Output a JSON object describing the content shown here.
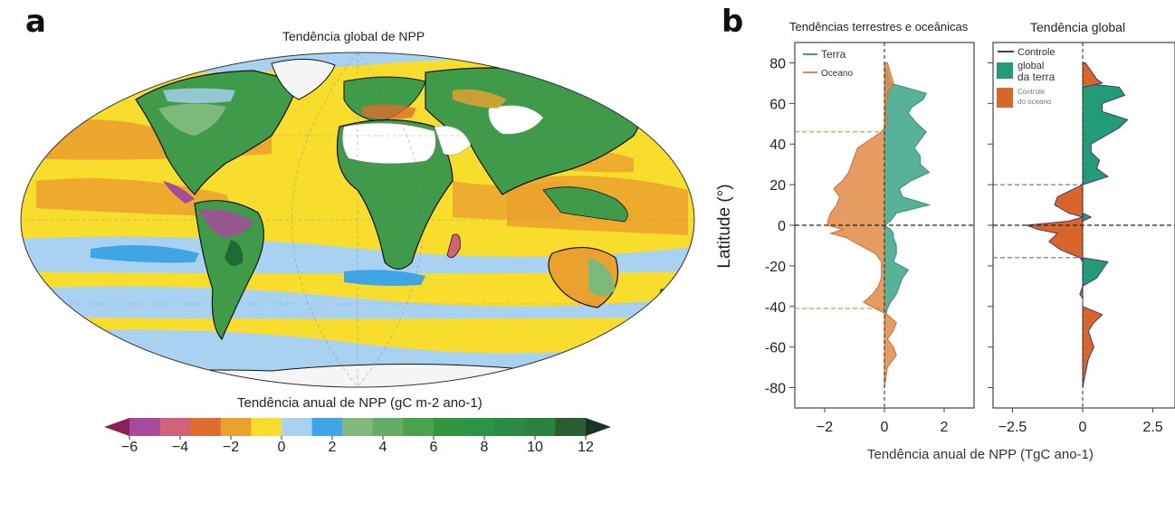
{
  "panel_a": {
    "letter": "a",
    "title": "Tendência global de NPP",
    "colorbar_label": "Tendência anual de NPP (gC m-2 ano-1)",
    "colorbar_ticks": [
      "−6",
      "−4",
      "−2",
      "0",
      "2",
      "4",
      "6",
      "8",
      "10",
      "12"
    ],
    "colorbar_colors": [
      "#8c1f5a",
      "#a64a9a",
      "#d0627a",
      "#de6d2e",
      "#eba12e",
      "#f9dd2d",
      "#a9d2f2",
      "#3ea6e6",
      "#82b97d",
      "#66ab66",
      "#4ba24b",
      "#32963f",
      "#2b9446",
      "#2a8b44",
      "#2c8240",
      "#2b5e33",
      "#1a3327"
    ],
    "colors": {
      "ocean_yellow": "#f9dd2d",
      "ocean_orange": "#eba12e",
      "ocean_light_blue": "#a9d2f2",
      "ocean_blue": "#3ea6e6",
      "land_green": "#3f9a4a",
      "land_light_green": "#7cb97a",
      "desert_white": "#ffffff",
      "ice_white": "#f5f5f5",
      "purple": "#a64a9a"
    }
  },
  "panel_b": {
    "letter": "b",
    "ylabel": "Latitude (°)",
    "xlabel": "Tendência anual de NPP (TgC ano-1)",
    "yticks": [
      "80",
      "60",
      "40",
      "20",
      "0",
      "-20",
      "-40",
      "-60",
      "-80"
    ],
    "left": {
      "title": "Tendências terrestres e oceânicas",
      "xticks": [
        "−2",
        "0",
        "2"
      ],
      "legend": [
        {
          "label": "Terra",
          "color": "#3ba487"
        },
        {
          "label": "Oceano",
          "color": "#e08a45"
        }
      ]
    },
    "right": {
      "title": "Tendência global",
      "xticks": [
        "−2.5",
        "0",
        "2.5"
      ],
      "legend": [
        {
          "label": "Controle",
          "kind": "line",
          "color": "#3c3a78"
        },
        {
          "label": "global",
          "kind": "text"
        },
        {
          "label": "da terra",
          "kind": "patch",
          "color": "#239a78"
        },
        {
          "label": "Controle",
          "kind": "patch",
          "color": "#d9652a"
        },
        {
          "label": "do oceano",
          "kind": "text"
        }
      ]
    }
  },
  "chart_data": [
    {
      "type": "heatmap",
      "title": "Tendência global de NPP",
      "projection": "Mollweide",
      "colorbar": {
        "label": "Tendência anual de NPP (gC m-2 ano-1)",
        "min": -6,
        "max": 12,
        "step": 1,
        "extend": "both"
      }
    },
    {
      "type": "area",
      "title": "Tendências terrestres e oceânicas",
      "xlabel": "Tendência anual de NPP (TgC ano-1)",
      "ylabel": "Latitude (°)",
      "xlim": [
        -3,
        3
      ],
      "ylim": [
        -90,
        90
      ],
      "reference_lines": {
        "horizontal_zero": 0,
        "ocean_dashed_lats": [
          46,
          -41
        ]
      },
      "lat": [
        80,
        75,
        70,
        65,
        62,
        58,
        55,
        50,
        46,
        42,
        38,
        34,
        30,
        26,
        22,
        18,
        14,
        10,
        6,
        2,
        0,
        -2,
        -4,
        -6,
        -10,
        -14,
        -18,
        -22,
        -26,
        -30,
        -34,
        -38,
        -41,
        -44,
        -48,
        -52,
        -56,
        -60,
        -64,
        -70,
        -80
      ],
      "series": [
        {
          "name": "Terra",
          "values": [
            0,
            0.1,
            0.2,
            1.4,
            1.3,
            0.9,
            0.8,
            1.1,
            1.4,
            1.2,
            1.0,
            1.2,
            1.2,
            1.5,
            0.9,
            0.5,
            0.6,
            1.5,
            0.4,
            0.2,
            0,
            0.2,
            0.3,
            0.3,
            0.4,
            0.4,
            0.3,
            0.8,
            0.6,
            0.5,
            0.4,
            0.2,
            0.1,
            0.05,
            0,
            0,
            0,
            0,
            0,
            0,
            0
          ]
        },
        {
          "name": "Oceano",
          "values": [
            0.1,
            0.2,
            0.3,
            0.1,
            0.1,
            0.05,
            0.05,
            0.1,
            -0.1,
            -0.5,
            -0.9,
            -1.0,
            -1.1,
            -1.2,
            -1.4,
            -1.7,
            -1.5,
            -1.6,
            -1.8,
            -1.9,
            -1.9,
            -1.4,
            -1.8,
            -1.3,
            -0.8,
            -0.3,
            -0.1,
            -0.1,
            -0.1,
            -0.2,
            -0.4,
            -0.7,
            -0.3,
            0.1,
            0.4,
            0.3,
            0.1,
            0.3,
            0.4,
            0.1,
            0
          ]
        }
      ]
    },
    {
      "type": "area",
      "title": "Tendência global",
      "xlabel": "Tendência anual de NPP (TgC ano-1)",
      "ylabel": "Latitude (°)",
      "xlim": [
        -3.2,
        3.3
      ],
      "ylim": [
        -90,
        90
      ],
      "reference_lines": {
        "horizontal_zero": 0,
        "dashed_lats": [
          20,
          -16
        ]
      },
      "lat": [
        80,
        76,
        72,
        70,
        68,
        64,
        60,
        56,
        52,
        48,
        44,
        40,
        36,
        32,
        28,
        24,
        20,
        18,
        14,
        10,
        6,
        4,
        2,
        0,
        -2,
        -4,
        -8,
        -12,
        -16,
        -18,
        -22,
        -26,
        -30,
        -34,
        -36,
        -40,
        -44,
        -48,
        -52,
        -56,
        -60,
        -66,
        -80
      ],
      "series": [
        {
          "name": "Controle global da terra",
          "values": [
            0,
            0,
            0,
            0,
            1.3,
            1.5,
            0.7,
            0.7,
            1.6,
            1.3,
            0.8,
            0.3,
            0.3,
            0.6,
            0.5,
            0.9,
            0,
            0,
            0,
            0,
            0,
            0.3,
            0,
            0,
            0,
            0,
            0,
            0,
            0,
            0.9,
            0.7,
            0.5,
            0,
            0,
            0,
            0,
            0,
            0,
            0,
            0,
            0,
            0,
            0
          ]
        },
        {
          "name": "Controle do oceano",
          "values": [
            0.1,
            0.3,
            0.5,
            0.7,
            0,
            0,
            0,
            0,
            0,
            0,
            0,
            0,
            0,
            0,
            0,
            0,
            0,
            -0.3,
            -0.9,
            -1.0,
            -0.5,
            0,
            -0.5,
            -2.0,
            -1.6,
            -0.9,
            -1.2,
            -0.8,
            -0.1,
            0,
            0,
            0,
            0,
            -0.1,
            0,
            0,
            0.7,
            0.4,
            0.2,
            0.3,
            0.4,
            0.2,
            0
          ]
        }
      ]
    }
  ]
}
